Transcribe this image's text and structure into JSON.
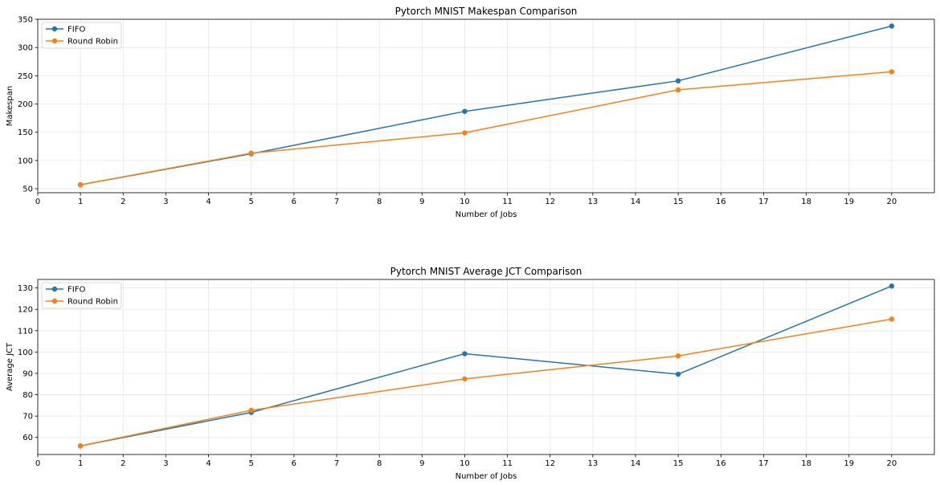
{
  "colors": {
    "fifo": "#1f77b4",
    "round_robin": "#ff7f0e",
    "grid": "#e6e6e6",
    "axis": "#000000"
  },
  "chart_data": [
    {
      "type": "line",
      "title": "Pytorch MNIST Makespan Comparison",
      "xlabel": "Number of Jobs",
      "ylabel": "Makespan",
      "x": [
        1,
        5,
        10,
        15,
        20
      ],
      "xlim": [
        0,
        21
      ],
      "ylim": [
        43,
        350
      ],
      "xticks": [
        0,
        1,
        2,
        3,
        4,
        5,
        6,
        7,
        8,
        9,
        10,
        11,
        12,
        13,
        14,
        15,
        16,
        17,
        18,
        19,
        20
      ],
      "yticks": [
        50,
        100,
        150,
        200,
        250,
        300,
        350
      ],
      "grid": true,
      "legend_position": "top-left",
      "series": [
        {
          "name": "FIFO",
          "color": "#1f77b4",
          "values": [
            57,
            112,
            187,
            241,
            338
          ]
        },
        {
          "name": "Round Robin",
          "color": "#ff7f0e",
          "values": [
            57,
            113,
            149,
            225,
            257
          ]
        }
      ]
    },
    {
      "type": "line",
      "title": "Pytorch MNIST Average JCT Comparison",
      "xlabel": "Number of Jobs",
      "ylabel": "Average JCT",
      "x": [
        1,
        5,
        10,
        15,
        20
      ],
      "xlim": [
        0,
        21
      ],
      "ylim": [
        52,
        134
      ],
      "xticks": [
        0,
        1,
        2,
        3,
        4,
        5,
        6,
        7,
        8,
        9,
        10,
        11,
        12,
        13,
        14,
        15,
        16,
        17,
        18,
        19,
        20
      ],
      "yticks": [
        60,
        70,
        80,
        90,
        100,
        110,
        120,
        130
      ],
      "grid": true,
      "legend_position": "top-left",
      "series": [
        {
          "name": "FIFO",
          "color": "#1f77b4",
          "values": [
            56,
            71.7,
            99.2,
            89.6,
            130.9
          ]
        },
        {
          "name": "Round Robin",
          "color": "#ff7f0e",
          "values": [
            56,
            72.7,
            87.4,
            98.2,
            115.4
          ]
        }
      ]
    }
  ]
}
